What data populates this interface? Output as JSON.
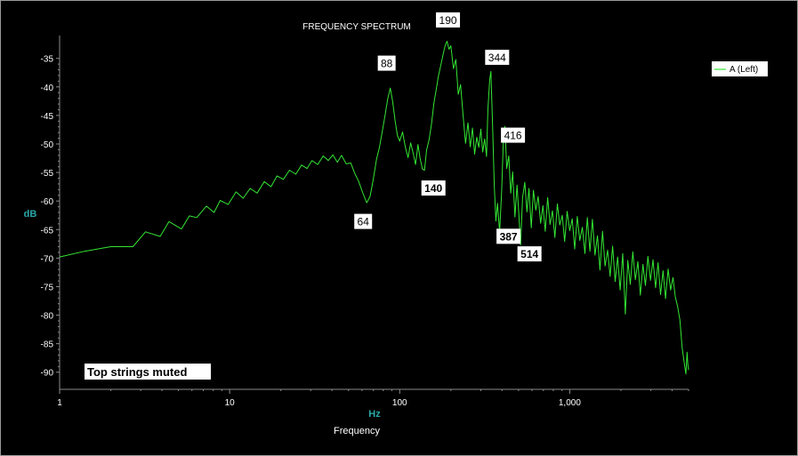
{
  "chart_data": {
    "type": "line",
    "title": "FREQUENCY SPECTRUM",
    "xlabel": "Hz",
    "xsublabel": "Frequency",
    "ylabel": "dB",
    "x_scale": "log",
    "xlim": [
      1,
      5000
    ],
    "ylim": [
      -93,
      -31
    ],
    "x_ticks": [
      {
        "value": 1,
        "label": "1"
      },
      {
        "value": 10,
        "label": "10"
      },
      {
        "value": 100,
        "label": "100"
      },
      {
        "value": 1000,
        "label": "1,000"
      }
    ],
    "y_ticks": [
      {
        "value": -35,
        "label": "-35"
      },
      {
        "value": -40,
        "label": "-40"
      },
      {
        "value": -45,
        "label": "-45"
      },
      {
        "value": -50,
        "label": "-50"
      },
      {
        "value": -55,
        "label": "-55"
      },
      {
        "value": -60,
        "label": "-60"
      },
      {
        "value": -65,
        "label": "-65"
      },
      {
        "value": -70,
        "label": "-70"
      },
      {
        "value": -75,
        "label": "-75"
      },
      {
        "value": -80,
        "label": "-80"
      },
      {
        "value": -85,
        "label": "-85"
      },
      {
        "value": -90,
        "label": "-90"
      }
    ],
    "grid": false,
    "legend_position": "top-right",
    "series": [
      {
        "name": "A (Left)",
        "color": "#33e633",
        "points": [
          [
            1,
            -69.8
          ],
          [
            1.4,
            -68.8
          ],
          [
            2,
            -68
          ],
          [
            2.7,
            -68
          ],
          [
            3.2,
            -65.4
          ],
          [
            3.9,
            -66.2
          ],
          [
            4.4,
            -63.6
          ],
          [
            5.2,
            -64.9
          ],
          [
            5.8,
            -62.6
          ],
          [
            6.4,
            -62.9
          ],
          [
            7.3,
            -60.9
          ],
          [
            8.1,
            -62
          ],
          [
            8.8,
            -59.9
          ],
          [
            9.8,
            -60.6
          ],
          [
            10.9,
            -58.4
          ],
          [
            12,
            -59.5
          ],
          [
            13.2,
            -57.8
          ],
          [
            14.5,
            -58.6
          ],
          [
            16,
            -56.6
          ],
          [
            17.5,
            -57.5
          ],
          [
            19,
            -55.6
          ],
          [
            20.7,
            -56.2
          ],
          [
            22.5,
            -54.6
          ],
          [
            24.5,
            -55.3
          ],
          [
            26.5,
            -53.7
          ],
          [
            28.5,
            -54.3
          ],
          [
            30.5,
            -52.9
          ],
          [
            33,
            -53.6
          ],
          [
            35.5,
            -52.1
          ],
          [
            38,
            -52.9
          ],
          [
            40.5,
            -51.9
          ],
          [
            43,
            -53.2
          ],
          [
            45.5,
            -52
          ],
          [
            48.5,
            -53.5
          ],
          [
            51.5,
            -53.3
          ],
          [
            54.5,
            -55.2
          ],
          [
            57.5,
            -56.6
          ],
          [
            60.5,
            -58.5
          ],
          [
            64,
            -60.3
          ],
          [
            67,
            -59.2
          ],
          [
            70,
            -56.1
          ],
          [
            73,
            -52.8
          ],
          [
            76,
            -50.6
          ],
          [
            79,
            -47.8
          ],
          [
            82,
            -45
          ],
          [
            85,
            -42.1
          ],
          [
            88,
            -40.2
          ],
          [
            91,
            -42.6
          ],
          [
            94,
            -45.9
          ],
          [
            97,
            -48.5
          ],
          [
            100,
            -49.5
          ],
          [
            104,
            -47.9
          ],
          [
            108,
            -50.6
          ],
          [
            112,
            -52.4
          ],
          [
            116,
            -49.8
          ],
          [
            120,
            -51.6
          ],
          [
            124,
            -53.6
          ],
          [
            128,
            -50.1
          ],
          [
            132,
            -52.6
          ],
          [
            136,
            -54.4
          ],
          [
            140,
            -54.6
          ],
          [
            144,
            -51.1
          ],
          [
            149,
            -49.2
          ],
          [
            154,
            -46.4
          ],
          [
            159,
            -42.8
          ],
          [
            164,
            -40.5
          ],
          [
            169,
            -38.1
          ],
          [
            174,
            -36.4
          ],
          [
            180,
            -34.3
          ],
          [
            185,
            -32.8
          ],
          [
            190,
            -32
          ],
          [
            195,
            -33.4
          ],
          [
            200,
            -32.8
          ],
          [
            207,
            -36.8
          ],
          [
            214,
            -35.2
          ],
          [
            221,
            -41.3
          ],
          [
            228,
            -39.6
          ],
          [
            236,
            -44.9
          ],
          [
            244,
            -49.9
          ],
          [
            252,
            -46.3
          ],
          [
            260,
            -50.5
          ],
          [
            268,
            -47.2
          ],
          [
            276,
            -51.8
          ],
          [
            284,
            -48.8
          ],
          [
            292,
            -50.6
          ],
          [
            300,
            -47.4
          ],
          [
            308,
            -51.4
          ],
          [
            316,
            -49.1
          ],
          [
            324,
            -52.2
          ],
          [
            330,
            -44.1
          ],
          [
            338,
            -38.8
          ],
          [
            344,
            -37.3
          ],
          [
            352,
            -46.8
          ],
          [
            360,
            -57.3
          ],
          [
            368,
            -63.5
          ],
          [
            376,
            -60.4
          ],
          [
            387,
            -65.4
          ],
          [
            398,
            -58.2
          ],
          [
            408,
            -48.4
          ],
          [
            416,
            -46.9
          ],
          [
            426,
            -54.3
          ],
          [
            438,
            -52.1
          ],
          [
            450,
            -58.6
          ],
          [
            462,
            -54.9
          ],
          [
            476,
            -62.8
          ],
          [
            490,
            -57.2
          ],
          [
            504,
            -63.1
          ],
          [
            514,
            -67.7
          ],
          [
            528,
            -59.4
          ],
          [
            544,
            -56.7
          ],
          [
            560,
            -61.9
          ],
          [
            576,
            -57.8
          ],
          [
            594,
            -64.7
          ],
          [
            612,
            -58.1
          ],
          [
            632,
            -61.6
          ],
          [
            652,
            -59.2
          ],
          [
            674,
            -63.9
          ],
          [
            696,
            -60.8
          ],
          [
            718,
            -65.3
          ],
          [
            742,
            -59.4
          ],
          [
            766,
            -64.1
          ],
          [
            792,
            -61.7
          ],
          [
            818,
            -66.4
          ],
          [
            846,
            -60.5
          ],
          [
            874,
            -64.2
          ],
          [
            904,
            -62.5
          ],
          [
            934,
            -67.1
          ],
          [
            966,
            -61.8
          ],
          [
            1000,
            -65.2
          ],
          [
            1034,
            -63.1
          ],
          [
            1070,
            -68.4
          ],
          [
            1108,
            -62.7
          ],
          [
            1146,
            -66.9
          ],
          [
            1186,
            -64.6
          ],
          [
            1228,
            -69.2
          ],
          [
            1270,
            -62.9
          ],
          [
            1314,
            -68.8
          ],
          [
            1360,
            -63.2
          ],
          [
            1408,
            -69.5
          ],
          [
            1456,
            -66.1
          ],
          [
            1506,
            -72.1
          ],
          [
            1560,
            -65.3
          ],
          [
            1614,
            -71.4
          ],
          [
            1670,
            -68.6
          ],
          [
            1728,
            -73.2
          ],
          [
            1788,
            -67.9
          ],
          [
            1850,
            -74.1
          ],
          [
            1914,
            -69.8
          ],
          [
            1980,
            -75.6
          ],
          [
            2050,
            -69.2
          ],
          [
            2122,
            -79.8
          ],
          [
            2196,
            -70.4
          ],
          [
            2272,
            -74.6
          ],
          [
            2350,
            -68.9
          ],
          [
            2432,
            -73.8
          ],
          [
            2516,
            -70.6
          ],
          [
            2604,
            -76.5
          ],
          [
            2694,
            -71.1
          ],
          [
            2788,
            -74.8
          ],
          [
            2884,
            -69.7
          ],
          [
            2984,
            -73.9
          ],
          [
            3088,
            -70.3
          ],
          [
            3196,
            -75.2
          ],
          [
            3306,
            -70.8
          ],
          [
            3420,
            -76.4
          ],
          [
            3540,
            -72.2
          ],
          [
            3662,
            -77.1
          ],
          [
            3790,
            -71.9
          ],
          [
            3920,
            -75.6
          ],
          [
            4050,
            -73.4
          ],
          [
            4180,
            -76.8
          ],
          [
            4310,
            -78.5
          ],
          [
            4450,
            -80.9
          ],
          [
            4580,
            -85.6
          ],
          [
            4700,
            -88.1
          ],
          [
            4820,
            -90.3
          ],
          [
            4900,
            -86.5
          ],
          [
            4950,
            -88.7
          ],
          [
            5000,
            -89.6
          ]
        ]
      }
    ],
    "annotations": [
      {
        "label": "88",
        "x": 88,
        "y": -40.2,
        "bold": false
      },
      {
        "label": "190",
        "x": 190,
        "y": -32,
        "bold": false
      },
      {
        "label": "344",
        "x": 344,
        "y": -37.3,
        "bold": false
      },
      {
        "label": "416",
        "x": 416,
        "y": -46.9,
        "bold": false
      },
      {
        "label": "140",
        "x": 140,
        "y": -54.6,
        "bold": true
      },
      {
        "label": "64",
        "x": 64,
        "y": -60.3,
        "bold": false
      },
      {
        "label": "387",
        "x": 387,
        "y": -65.4,
        "bold": true
      },
      {
        "label": "514",
        "x": 514,
        "y": -67.7,
        "bold": true
      }
    ],
    "note": "Top strings muted"
  },
  "colors": {
    "background": "#000000",
    "axis": "#8c8c8c",
    "line": "#33e633",
    "axis_name": "#2aa7a7",
    "label_box": "#ffffff"
  }
}
